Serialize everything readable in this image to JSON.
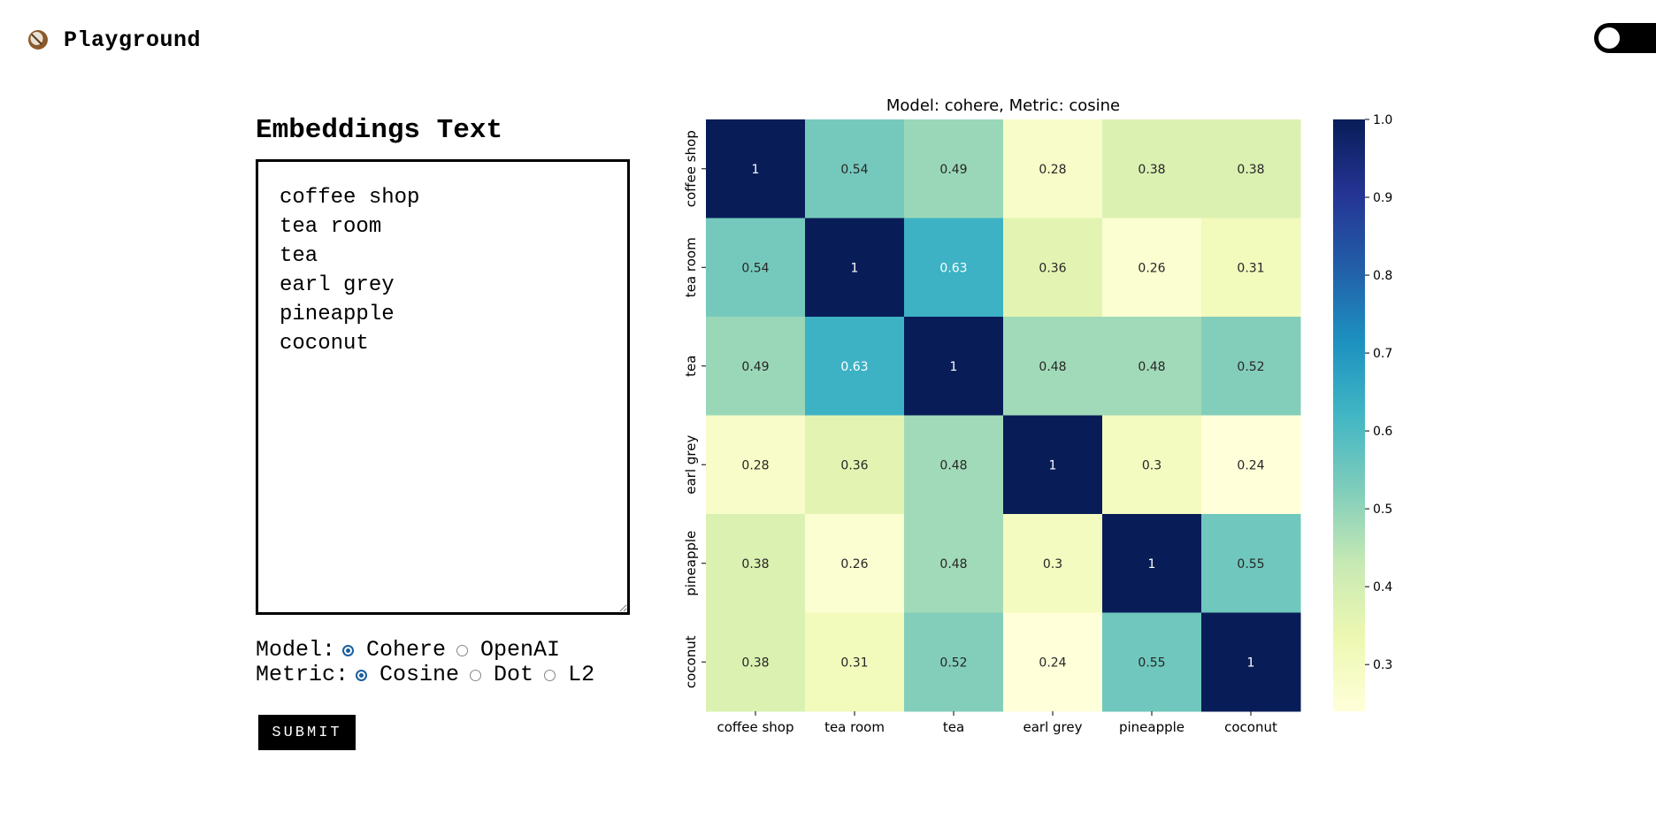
{
  "app": {
    "title": "Playground"
  },
  "panel": {
    "title": "Embeddings Text",
    "textarea_value": "coffee shop\ntea room\ntea\nearl grey\npineapple\ncoconut",
    "model_label": "Model:",
    "model_options": [
      "Cohere",
      "OpenAI"
    ],
    "model_selected": "Cohere",
    "metric_label": "Metric:",
    "metric_options": [
      "Cosine",
      "Dot",
      "L2"
    ],
    "metric_selected": "Cosine",
    "submit_label": "SUBMIT"
  },
  "chart_data": {
    "type": "heatmap",
    "title": "Model: cohere, Metric: cosine",
    "rows": [
      "coffee shop",
      "tea room",
      "tea",
      "earl grey",
      "pineapple",
      "coconut"
    ],
    "columns": [
      "coffee shop",
      "tea room",
      "tea",
      "earl grey",
      "pineapple",
      "coconut"
    ],
    "values": [
      [
        1,
        0.54,
        0.49,
        0.28,
        0.38,
        0.38
      ],
      [
        0.54,
        1,
        0.63,
        0.36,
        0.26,
        0.31
      ],
      [
        0.49,
        0.63,
        1,
        0.48,
        0.48,
        0.52
      ],
      [
        0.28,
        0.36,
        0.48,
        1,
        0.3,
        0.24
      ],
      [
        0.38,
        0.26,
        0.48,
        0.3,
        1,
        0.55
      ],
      [
        0.38,
        0.31,
        0.52,
        0.24,
        0.55,
        1
      ]
    ],
    "colorbar": {
      "range": [
        0.24,
        1.0
      ],
      "ticks": [
        0.3,
        0.4,
        0.5,
        0.6,
        0.7,
        0.8,
        0.9,
        1.0
      ],
      "tick_labels": [
        "0.3",
        "0.4",
        "0.5",
        "0.6",
        "0.7",
        "0.8",
        "0.9",
        "1.0"
      ]
    },
    "colormap": "YlGnBu"
  }
}
